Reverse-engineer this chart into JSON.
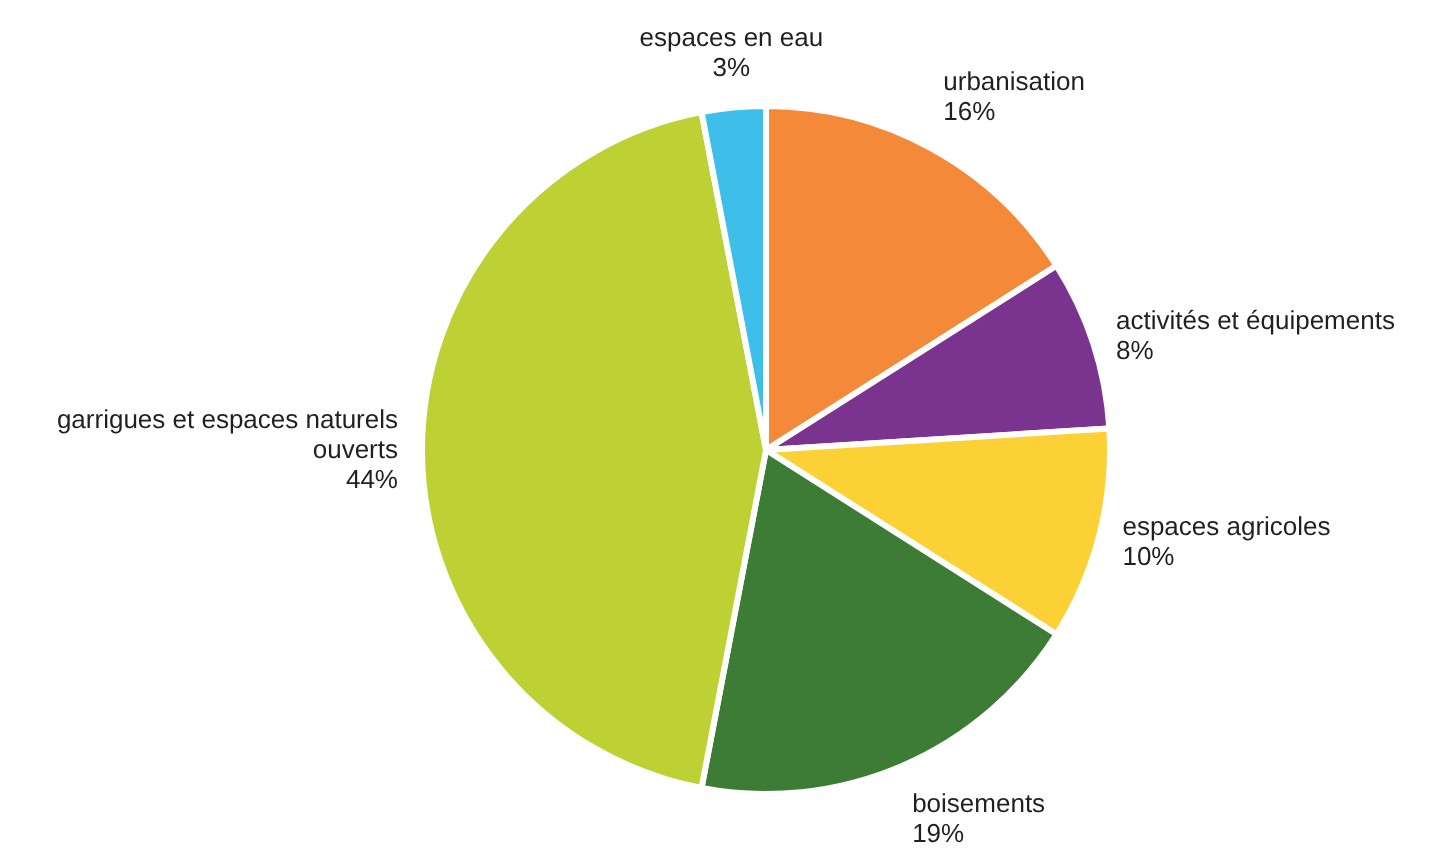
{
  "chart_data": {
    "type": "pie",
    "categories": [
      "urbanisation",
      "activités et équipements",
      "espaces agricoles",
      "boisements",
      "garrigues et espaces naturels ouverts",
      "espaces en eau"
    ],
    "values": [
      16,
      8,
      10,
      19,
      44,
      3
    ],
    "value_labels": [
      "16%",
      "8%",
      "10%",
      "19%",
      "44%",
      "3%"
    ],
    "colors": [
      "#f4893a",
      "#7b3390",
      "#fcd135",
      "#3c7c35",
      "#bdd034",
      "#3dbfea"
    ]
  }
}
